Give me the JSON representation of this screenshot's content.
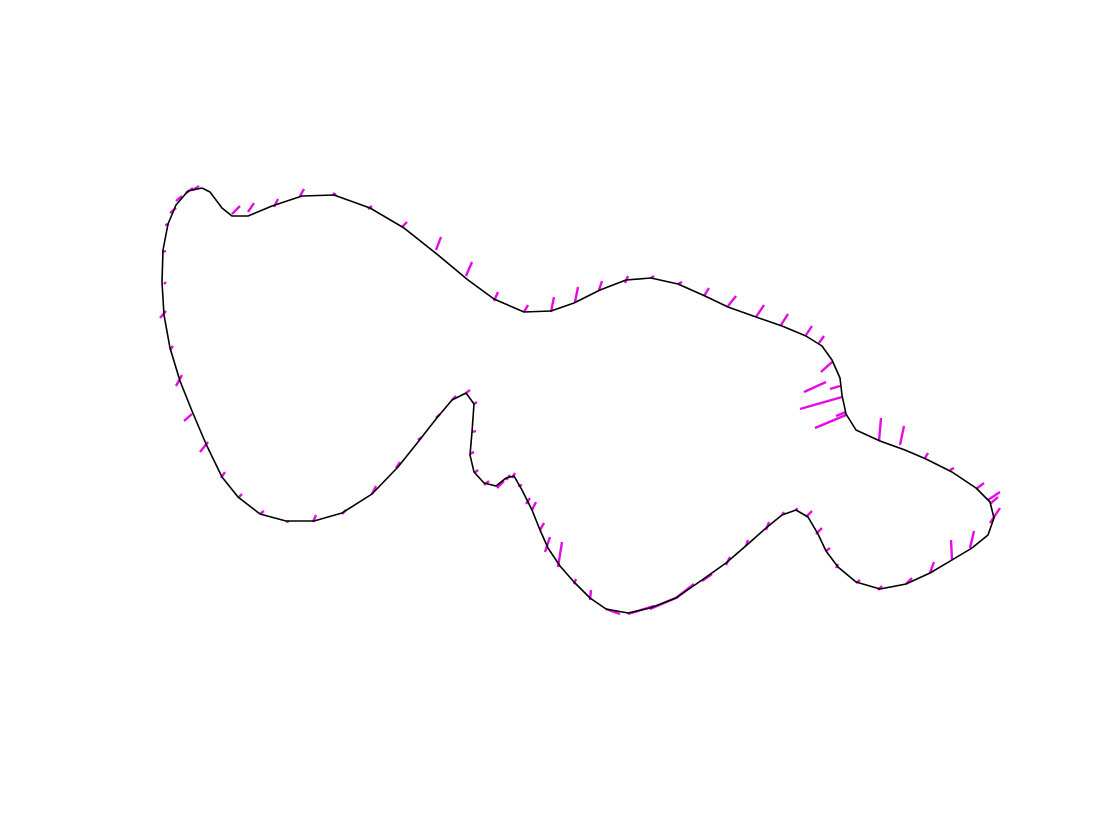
{
  "figure": {
    "background_color": "#ffffff",
    "outline_color": "#000000",
    "tick_color": "#e60ae6"
  }
}
